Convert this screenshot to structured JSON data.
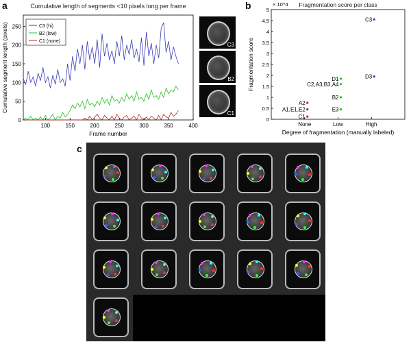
{
  "panels": {
    "a": "a",
    "b": "b",
    "c": "c"
  },
  "colors": {
    "C3": "#3a3ab8",
    "B2": "#22c022",
    "C1": "#c02020"
  },
  "chart_data": [
    {
      "type": "line",
      "title": "Cumulative length of segments <10 pixels long per frame",
      "xlabel": "Frame number",
      "ylabel": "Cumulative segment length (pixels)",
      "xlim": [
        55,
        400
      ],
      "ylim": [
        0,
        280
      ],
      "xticks": [
        100,
        150,
        200,
        250,
        300,
        350,
        400
      ],
      "yticks": [
        0,
        50,
        100,
        150,
        200,
        250
      ],
      "grid": false,
      "legend": "top-left",
      "series": [
        {
          "name": "C3 (hi)",
          "color": "#3a3ab8",
          "x": [
            55,
            60,
            65,
            70,
            75,
            80,
            85,
            90,
            95,
            100,
            105,
            110,
            115,
            120,
            125,
            130,
            135,
            140,
            145,
            150,
            155,
            160,
            165,
            170,
            175,
            180,
            185,
            190,
            195,
            200,
            205,
            210,
            215,
            220,
            225,
            230,
            235,
            240,
            245,
            250,
            255,
            260,
            265,
            270,
            275,
            280,
            285,
            290,
            295,
            300,
            305,
            310,
            315,
            320,
            325,
            330,
            335,
            340,
            345,
            350,
            355,
            360,
            365,
            370
          ],
          "y": [
            110,
            95,
            130,
            100,
            115,
            90,
            125,
            105,
            140,
            100,
            115,
            85,
            120,
            95,
            135,
            100,
            110,
            90,
            150,
            105,
            170,
            130,
            190,
            150,
            200,
            135,
            210,
            160,
            195,
            150,
            215,
            140,
            230,
            170,
            205,
            160,
            185,
            150,
            210,
            170,
            225,
            160,
            200,
            175,
            215,
            165,
            190,
            155,
            220,
            145,
            235,
            170,
            205,
            150,
            200,
            165,
            245,
            260,
            180,
            210,
            160,
            195,
            170,
            150
          ]
        },
        {
          "name": "B2 (low)",
          "color": "#22c022",
          "x": [
            55,
            60,
            65,
            70,
            75,
            80,
            85,
            90,
            95,
            100,
            105,
            110,
            115,
            120,
            125,
            130,
            135,
            140,
            145,
            150,
            155,
            160,
            165,
            170,
            175,
            180,
            185,
            190,
            195,
            200,
            205,
            210,
            215,
            220,
            225,
            230,
            235,
            240,
            245,
            250,
            255,
            260,
            265,
            270,
            275,
            280,
            285,
            290,
            295,
            300,
            305,
            310,
            315,
            320,
            325,
            330,
            335,
            340,
            345,
            350,
            355,
            360,
            365,
            370
          ],
          "y": [
            0,
            5,
            0,
            10,
            0,
            5,
            0,
            8,
            0,
            12,
            0,
            6,
            15,
            0,
            10,
            5,
            20,
            8,
            15,
            25,
            40,
            30,
            45,
            35,
            50,
            30,
            55,
            40,
            45,
            35,
            50,
            40,
            60,
            45,
            55,
            40,
            65,
            50,
            55,
            45,
            60,
            50,
            70,
            55,
            65,
            50,
            75,
            55,
            60,
            50,
            70,
            55,
            80,
            60,
            65,
            55,
            75,
            60,
            85,
            70,
            80,
            75,
            90,
            80
          ]
        },
        {
          "name": "C1 (none)",
          "color": "#c02020",
          "x": [
            55,
            60,
            65,
            70,
            75,
            80,
            85,
            90,
            95,
            100,
            105,
            110,
            115,
            120,
            125,
            130,
            135,
            140,
            145,
            150,
            155,
            160,
            165,
            170,
            175,
            180,
            185,
            190,
            195,
            200,
            205,
            210,
            215,
            220,
            225,
            230,
            235,
            240,
            245,
            250,
            255,
            260,
            265,
            270,
            275,
            280,
            285,
            290,
            295,
            300,
            305,
            310,
            315,
            320,
            325,
            330,
            335,
            340,
            345,
            350,
            355,
            360,
            365,
            370
          ],
          "y": [
            0,
            0,
            0,
            0,
            0,
            0,
            0,
            0,
            0,
            0,
            0,
            0,
            0,
            0,
            0,
            0,
            0,
            0,
            0,
            0,
            0,
            0,
            0,
            0,
            0,
            5,
            0,
            10,
            0,
            8,
            15,
            5,
            0,
            12,
            5,
            0,
            10,
            0,
            15,
            5,
            0,
            8,
            12,
            0,
            5,
            10,
            0,
            15,
            5,
            0,
            8,
            0,
            10,
            5,
            0,
            12,
            0,
            15,
            8,
            5,
            20,
            10,
            15,
            25
          ]
        }
      ]
    },
    {
      "type": "scatter",
      "title": "Fragmentation score per class",
      "xlabel": "Degree of fragmentation (manually labeled)",
      "ylabel": "Fragmentation score",
      "yexp": "× 10^4",
      "categories": [
        "None",
        "Low",
        "High"
      ],
      "ylim": [
        0,
        5
      ],
      "yticks": [
        0,
        0.5,
        1,
        1.5,
        2,
        2.5,
        3,
        3.5,
        4,
        4.5,
        5
      ],
      "grid": false,
      "points": [
        {
          "label": "A2",
          "cat": 0,
          "y": 0.75,
          "color": "#c02020"
        },
        {
          "label": "A1,E1,E2",
          "cat": 0,
          "y": 0.45,
          "color": "#c02020"
        },
        {
          "label": "C1",
          "cat": 0,
          "y": 0.12,
          "color": "#c02020"
        },
        {
          "label": "D1",
          "cat": 1,
          "y": 1.85,
          "color": "#22c022"
        },
        {
          "label": "C2,A3,B3,A4",
          "cat": 1,
          "y": 1.6,
          "color": "#22c022"
        },
        {
          "label": "B2",
          "cat": 1,
          "y": 1.0,
          "color": "#22c022"
        },
        {
          "label": "E3",
          "cat": 1,
          "y": 0.45,
          "color": "#22c022"
        },
        {
          "label": "C3",
          "cat": 2,
          "y": 4.55,
          "color": "#3a3ab8"
        },
        {
          "label": "D3",
          "cat": 2,
          "y": 1.95,
          "color": "#3a3ab8"
        }
      ]
    }
  ],
  "thumbnails": [
    "C3",
    "B2",
    "C1"
  ]
}
